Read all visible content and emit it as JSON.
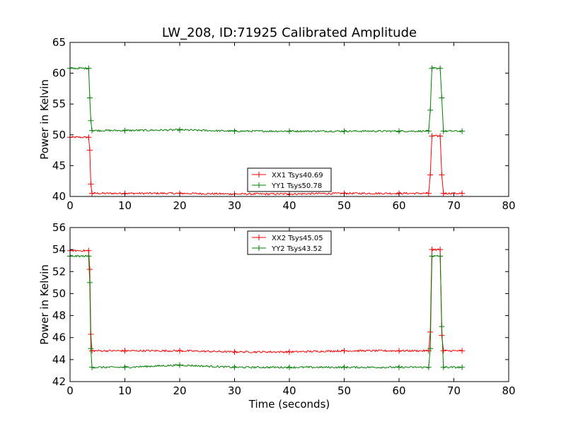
{
  "chart_data": [
    {
      "type": "line",
      "title": "LW_208, ID:71925 Calibrated Amplitude",
      "xlabel": "",
      "ylabel": "Power in Kelvin",
      "xlim": [
        0,
        80
      ],
      "ylim": [
        40,
        65
      ],
      "xticks": [
        "0",
        "10",
        "20",
        "30",
        "40",
        "50",
        "60",
        "70",
        "80"
      ],
      "yticks": [
        "40",
        "45",
        "50",
        "55",
        "60",
        "65"
      ],
      "legend_position": "lower-center",
      "grid": false,
      "series": [
        {
          "name": "XX1 Tsys40.69",
          "color": "#ff0000",
          "marker": "+",
          "x": [
            0,
            3.4,
            3.6,
            3.8,
            4.0,
            10,
            20,
            30,
            40,
            50,
            60,
            65.4,
            65.7,
            66.0,
            67.5,
            67.8,
            68.1,
            71.5
          ],
          "y": [
            49.6,
            49.6,
            47.5,
            42.0,
            40.5,
            40.5,
            40.5,
            40.4,
            40.4,
            40.5,
            40.5,
            40.5,
            43.5,
            49.8,
            49.8,
            43.5,
            40.5,
            40.5
          ]
        },
        {
          "name": "YY1 Tsys50.78",
          "color": "#008000",
          "marker": "+",
          "x": [
            0,
            3.4,
            3.6,
            3.8,
            4.0,
            10,
            20,
            30,
            40,
            50,
            60,
            65.4,
            65.7,
            66.0,
            67.5,
            67.8,
            68.1,
            71.5
          ],
          "y": [
            60.8,
            60.8,
            56.0,
            52.3,
            50.7,
            50.7,
            50.8,
            50.6,
            50.6,
            50.6,
            50.6,
            50.6,
            54.0,
            60.8,
            60.8,
            56.0,
            50.6,
            50.6
          ]
        }
      ]
    },
    {
      "type": "line",
      "title": "",
      "xlabel": "Time (seconds)",
      "ylabel": "Power in Kelvin",
      "xlim": [
        0,
        80
      ],
      "ylim": [
        42,
        56
      ],
      "xticks": [
        "0",
        "10",
        "20",
        "30",
        "40",
        "50",
        "60",
        "70",
        "80"
      ],
      "yticks": [
        "42",
        "44",
        "46",
        "48",
        "50",
        "52",
        "54",
        "56"
      ],
      "legend_position": "upper-center",
      "grid": false,
      "series": [
        {
          "name": "XX2 Tsys45.05",
          "color": "#ff0000",
          "marker": "+",
          "x": [
            0,
            3.4,
            3.6,
            3.8,
            4.0,
            10,
            20,
            30,
            40,
            50,
            60,
            65.4,
            65.7,
            66.0,
            67.5,
            67.8,
            68.1,
            71.5
          ],
          "y": [
            53.9,
            53.9,
            52.2,
            46.3,
            44.8,
            44.8,
            44.8,
            44.7,
            44.7,
            44.8,
            44.8,
            44.8,
            46.5,
            54.0,
            54.0,
            46.2,
            44.8,
            44.8
          ]
        },
        {
          "name": "YY2 Tsys43.52",
          "color": "#008000",
          "marker": "+",
          "x": [
            0,
            3.4,
            3.6,
            3.8,
            4.0,
            10,
            20,
            30,
            40,
            50,
            60,
            65.4,
            65.7,
            66.0,
            67.5,
            67.8,
            68.1,
            71.5
          ],
          "y": [
            53.4,
            53.4,
            51.0,
            45.0,
            43.3,
            43.3,
            43.5,
            43.3,
            43.3,
            43.3,
            43.3,
            43.3,
            45.0,
            53.4,
            53.4,
            47.0,
            43.3,
            43.3
          ]
        }
      ]
    }
  ]
}
